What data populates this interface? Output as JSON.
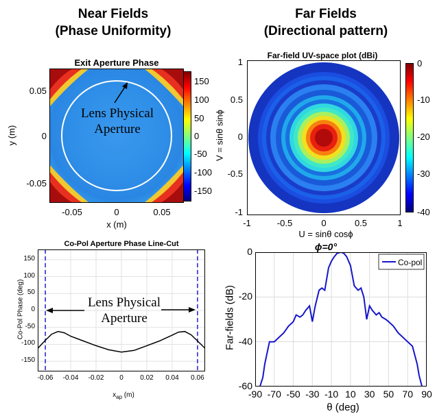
{
  "headers": {
    "near_line1": "Near Fields",
    "near_line2": "(Phase Uniformity)",
    "far_line1": "Far Fields",
    "far_line2": "(Directional pattern)"
  },
  "chart_data": [
    {
      "type": "heatmap",
      "title": "Exit Aperture Phase",
      "xlabel": "x (m)",
      "ylabel": "y (m)",
      "xlim": [
        -0.07,
        0.07
      ],
      "ylim": [
        -0.07,
        0.07
      ],
      "xticks": [
        "-0.05",
        "0",
        "0.05"
      ],
      "yticks": [
        "0.05",
        "0",
        "-0.05"
      ],
      "colorbar": {
        "range": [
          -180,
          180
        ],
        "ticks": [
          "150",
          "100",
          "50",
          "0",
          "-50",
          "-100",
          "-150"
        ]
      },
      "annotation": {
        "line1": "Lens Physical",
        "line2": "Aperture"
      },
      "colors": {
        "low": "#0a1a9a",
        "mid": "#2f8fe8",
        "high": "#b01010",
        "circle": "#ffffff"
      }
    },
    {
      "type": "heatmap",
      "title": "Far-field UV-space plot (dBi)",
      "xlabel": "U = sinθ cosϕ",
      "ylabel": "V = sinθ sinϕ",
      "xlim": [
        -1,
        1
      ],
      "ylim": [
        -1,
        1
      ],
      "xticks": [
        "-1",
        "-0.5",
        "0",
        "0.5",
        "1"
      ],
      "yticks": [
        "1",
        "0.5",
        "0",
        "-0.5",
        "-1"
      ],
      "colorbar": {
        "range": [
          -40,
          0
        ],
        "ticks": [
          "0",
          "-10",
          "-20",
          "-30",
          "-40"
        ]
      }
    },
    {
      "type": "line",
      "title": "Co-Pol Aperture Phase Line-Cut",
      "xlabel": "x_ap (m)",
      "ylabel": "Co-Pol Phase (deg)",
      "xlim": [
        -0.066,
        0.066
      ],
      "ylim": [
        -180,
        180
      ],
      "xticks": [
        "-0.06",
        "-0.04",
        "-0.02",
        "0",
        "0.02",
        "0.04",
        "0.06"
      ],
      "yticks": [
        "150",
        "100",
        "50",
        "0",
        "-50",
        "-100",
        "-150"
      ],
      "x": [
        -0.066,
        -0.06,
        -0.055,
        -0.05,
        -0.045,
        -0.04,
        -0.03,
        -0.02,
        -0.01,
        0,
        0.01,
        0.02,
        0.03,
        0.04,
        0.045,
        0.05,
        0.055,
        0.06,
        0.066
      ],
      "series": [
        {
          "values": [
            -112,
            -88,
            -70,
            -62,
            -66,
            -76,
            -90,
            -104,
            -116,
            -123,
            -118,
            -104,
            -90,
            -73,
            -64,
            -62,
            -72,
            -90,
            -112
          ]
        }
      ],
      "aperture_lines": [
        -0.06,
        0.06
      ],
      "annotation": {
        "line1": "Lens Physical",
        "line2": "Aperture"
      }
    },
    {
      "type": "line",
      "title": "ϕ=0°",
      "xlabel": "θ (deg)",
      "ylabel": "Far-fields (dB)",
      "xlim": [
        -90,
        90
      ],
      "ylim": [
        -60,
        0
      ],
      "xticks": [
        "-90",
        "-70",
        "-50",
        "-30",
        "-10",
        "10",
        "30",
        "50",
        "70",
        "90"
      ],
      "yticks": [
        "0",
        "-20",
        "-40",
        "-60"
      ],
      "x": [
        -90,
        -85,
        -82,
        -80,
        -75,
        -70,
        -60,
        -55,
        -50,
        -47,
        -43,
        -40,
        -37,
        -33,
        -30,
        -27,
        -23,
        -20,
        -17,
        -13,
        -10,
        -7,
        -4,
        0,
        3,
        6,
        10,
        14,
        18,
        21,
        24,
        27,
        30,
        33,
        37,
        40,
        43,
        47,
        50,
        55,
        60,
        70,
        75,
        80,
        82,
        85,
        90
      ],
      "series": [
        {
          "name": "Co-pol",
          "color": "#1515cc",
          "values": [
            -60,
            -60,
            -56,
            -50,
            -40,
            -40,
            -36,
            -33,
            -31,
            -28,
            -29,
            -28,
            -26,
            -24,
            -31,
            -24,
            -17,
            -16,
            -17,
            -7,
            -4,
            -2,
            -0.5,
            0,
            -0.5,
            -2,
            -6,
            -15,
            -17,
            -16,
            -20,
            -30,
            -24,
            -26,
            -28,
            -27,
            -29,
            -30,
            -31,
            -33,
            -36,
            -40,
            -42,
            -50,
            -55,
            -60,
            -60
          ]
        }
      ],
      "legend": "top-right"
    }
  ]
}
